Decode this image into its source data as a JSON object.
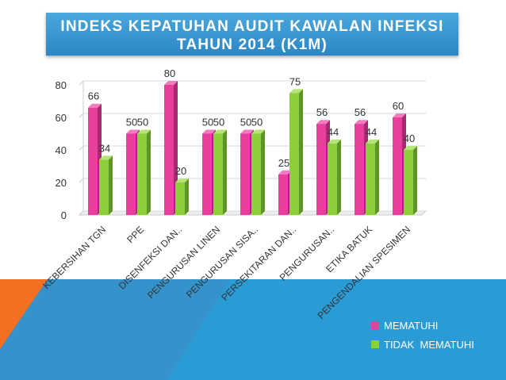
{
  "slide": {
    "title_line1": "INDEKS KEPATUHAN AUDIT KAWALAN INFEKSI",
    "title_line2": "TAHUN 2014 (K1M)"
  },
  "colors": {
    "title_bg": "#2c86c4",
    "series_mematuhi": "#e83e9c",
    "series_tidak": "#8ccf3c",
    "deco_orange": "#f36f21",
    "deco_blue": "#2b9bd6"
  },
  "chart_data": {
    "type": "bar",
    "title": "INDEKS KEPATUHAN AUDIT KAWALAN INFEKSI TAHUN 2014 (K1M)",
    "categories": [
      "KEBERSIHAN TGN",
      "PPE",
      "DISENFEKSI DAN..",
      "PENGURUSAN LINEN",
      "PENGURUSAN SISA..",
      "PERSEKITARAN DAN..",
      "PENGURUSAN..",
      "ETIKA BATUK",
      "PENGENDALIAN SPESIMEN"
    ],
    "series": [
      {
        "name": "MEMATUHI",
        "values": [
          66,
          50,
          80,
          50,
          50,
          25,
          56,
          56,
          60
        ]
      },
      {
        "name": "TIDAK  MEMATUHI",
        "values": [
          34,
          50,
          20,
          50,
          50,
          75,
          44,
          44,
          40
        ]
      }
    ],
    "y_ticks": [
      "0",
      "20",
      "40",
      "60",
      "80"
    ],
    "ylim": [
      0,
      80
    ],
    "grid": true,
    "legend_position": "bottom-right",
    "xlabel": "",
    "ylabel": ""
  }
}
